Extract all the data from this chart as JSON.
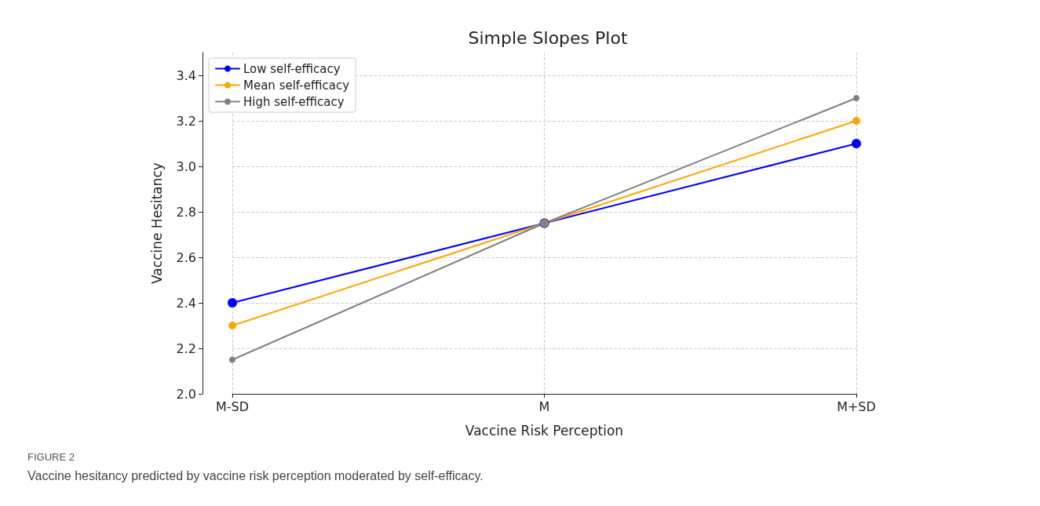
{
  "chart_data": {
    "type": "line",
    "title": "Simple Slopes Plot",
    "xlabel": "Vaccine Risk Perception",
    "ylabel": "Vaccine Hesitancy",
    "categories": [
      "M-SD",
      "M",
      "M+SD"
    ],
    "series": [
      {
        "name": "Low self-efficacy",
        "color": "#0000ff",
        "values": [
          2.4,
          2.75,
          3.1
        ]
      },
      {
        "name": "Mean self-efficacy",
        "color": "#ffa500",
        "values": [
          2.3,
          2.75,
          3.2
        ]
      },
      {
        "name": "High self-efficacy",
        "color": "#808080",
        "values": [
          2.15,
          2.75,
          3.3
        ]
      }
    ],
    "ylim": [
      2.0,
      3.5
    ],
    "yticks": [
      {
        "value": 2,
        "label": "2.0"
      },
      {
        "value": 2.2,
        "label": "2.2"
      },
      {
        "value": 2.4,
        "label": "2.4"
      },
      {
        "value": 2.6,
        "label": "2.6"
      },
      {
        "value": 2.8,
        "label": "2.8"
      },
      {
        "value": 3,
        "label": "3.0"
      },
      {
        "value": 3.2,
        "label": "3.2"
      },
      {
        "value": 3.4,
        "label": "3.4"
      }
    ],
    "grid": true,
    "legend": "top left",
    "marker": "circle",
    "line_style": "solid",
    "annotations": [
      "FIGURE 2",
      "Vaccine hesitancy predicted by vaccine risk perception moderated by self-efficacy."
    ]
  }
}
